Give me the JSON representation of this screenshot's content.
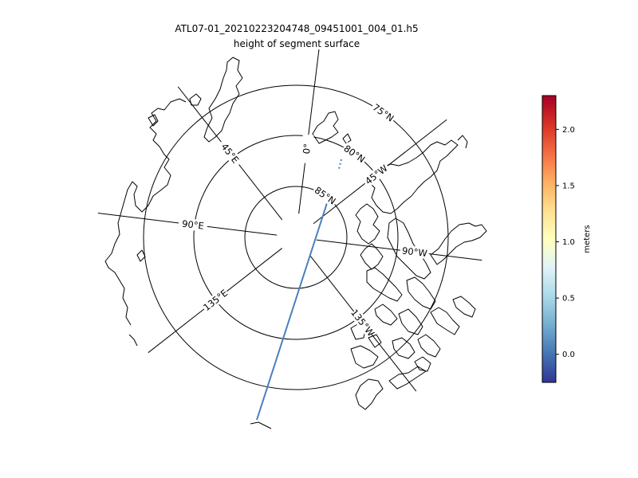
{
  "figure": {
    "title": "ATL07-01_20210223204748_09451001_004_01.h5",
    "subtitle": "height of segment surface"
  },
  "map": {
    "projection": "north-polar-stereographic",
    "parallels": [
      {
        "lat": 85,
        "label": "85°N"
      },
      {
        "lat": 80,
        "label": "80°N"
      },
      {
        "lat": 75,
        "label": "75°N"
      }
    ],
    "meridians": [
      {
        "lon": 0,
        "label": "0°"
      },
      {
        "lon": 45,
        "label": "45°E"
      },
      {
        "lon": 90,
        "label": "90°E"
      },
      {
        "lon": 135,
        "label": "135°E"
      },
      {
        "lon": -45,
        "label": "45°W"
      },
      {
        "lon": -90,
        "label": "90°W"
      },
      {
        "lon": -135,
        "label": "135°W"
      }
    ],
    "track_color": "#4a7fc0",
    "coastline_color": "#000000"
  },
  "colorbar": {
    "label": "meters",
    "colormap": "RdYlBu_r",
    "ticks": [
      0.0,
      0.5,
      1.0,
      1.5,
      2.0
    ],
    "tick_labels": [
      "0.0",
      "0.5",
      "1.0",
      "1.5",
      "2.0"
    ],
    "vmin": -0.25,
    "vmax": 2.3
  }
}
